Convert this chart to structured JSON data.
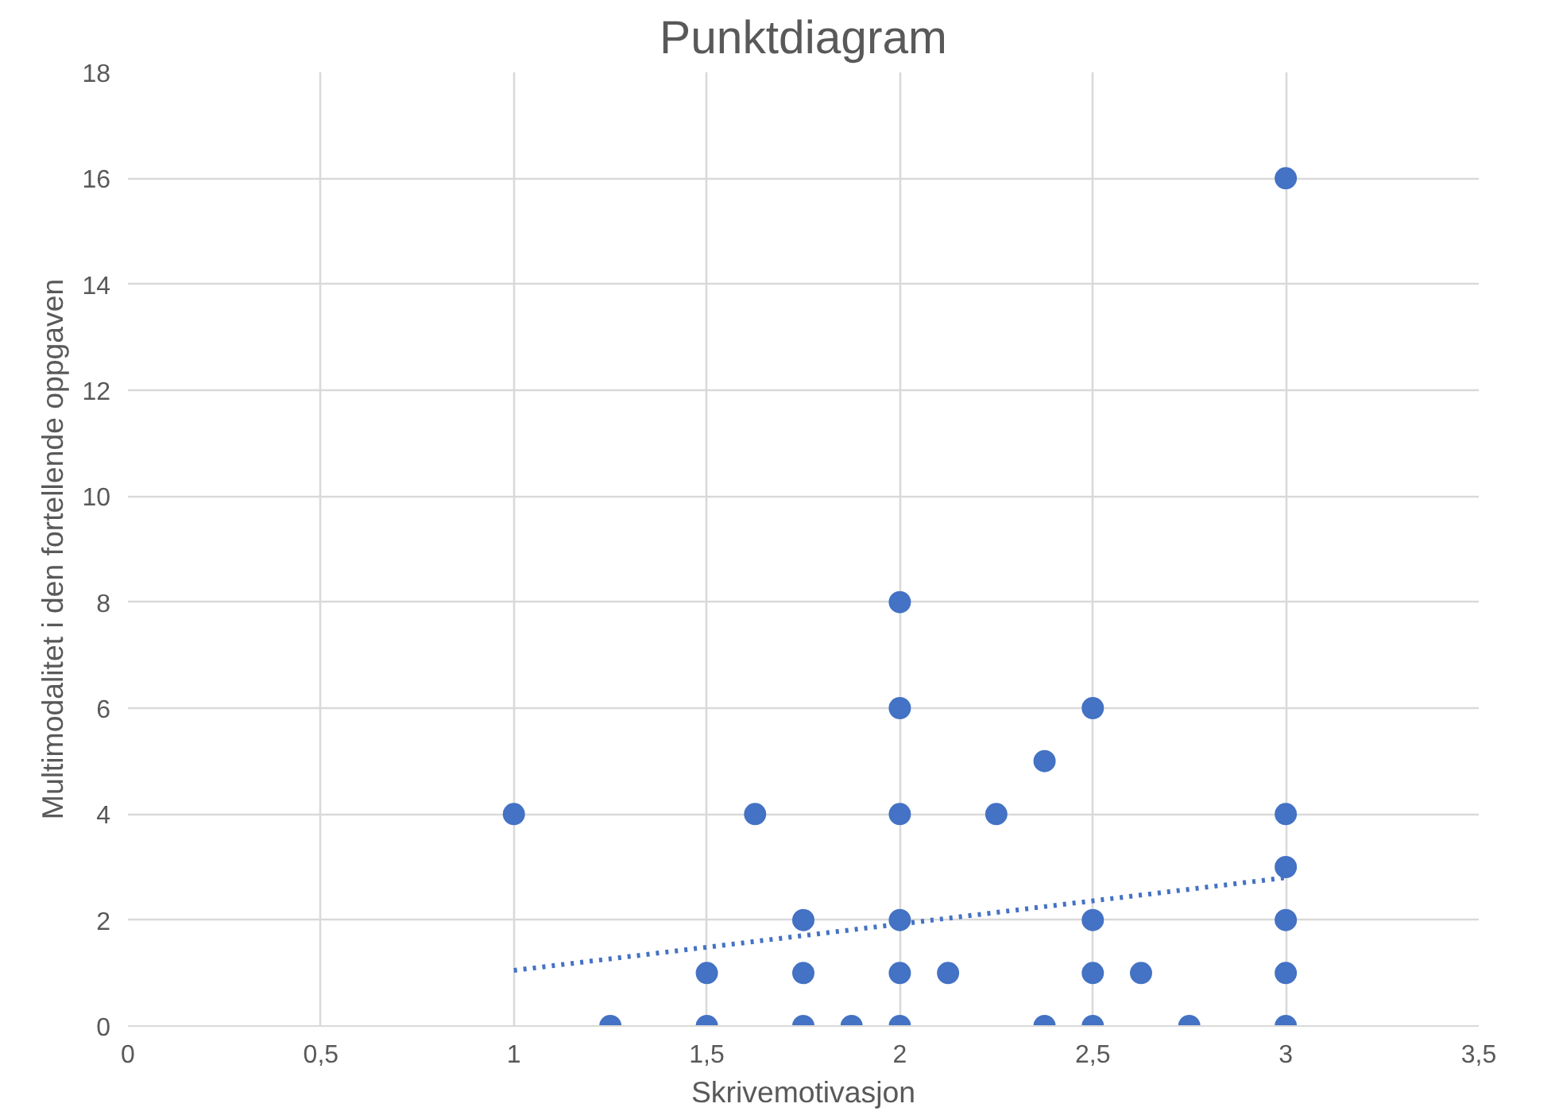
{
  "chart_data": {
    "type": "scatter",
    "title": "Punktdiagram",
    "xlabel": "Skrivemotivasjon",
    "ylabel": "Multimodalitet i den fortellende oppgaven",
    "xlim": [
      0,
      3.5
    ],
    "ylim": [
      0,
      18
    ],
    "xticks": [
      0,
      {
        "value": 0.5,
        "label": "0,5"
      },
      1,
      {
        "value": 1.5,
        "label": "1,5"
      },
      2,
      {
        "value": 2.5,
        "label": "2,5"
      },
      3,
      {
        "value": 3.5,
        "label": "3,5"
      }
    ],
    "yticks": [
      0,
      2,
      4,
      6,
      8,
      10,
      12,
      14,
      16,
      18
    ],
    "grid": true,
    "series": [
      {
        "marker": "circle",
        "color": "#4472c4",
        "x": [
          1,
          1.25,
          1.5,
          1.5,
          1.625,
          1.75,
          1.75,
          1.75,
          1.875,
          2,
          2,
          2,
          2,
          2,
          2,
          2.125,
          2.25,
          2.375,
          2.375,
          2.5,
          2.5,
          2.5,
          2.5,
          2.625,
          2.75,
          3,
          3,
          3,
          3,
          3,
          3
        ],
        "values": [
          4,
          0,
          1,
          0,
          4,
          2,
          1,
          0,
          0,
          8,
          6,
          4,
          2,
          1,
          0,
          1,
          4,
          5,
          0,
          6,
          2,
          1,
          0,
          1,
          0,
          16,
          4,
          3,
          2,
          1,
          0
        ]
      },
      {
        "type": "line",
        "color": "#4472c4",
        "line_style": "dotted",
        "x": [
          1,
          3
        ],
        "values": [
          1.05,
          2.8
        ]
      }
    ]
  }
}
